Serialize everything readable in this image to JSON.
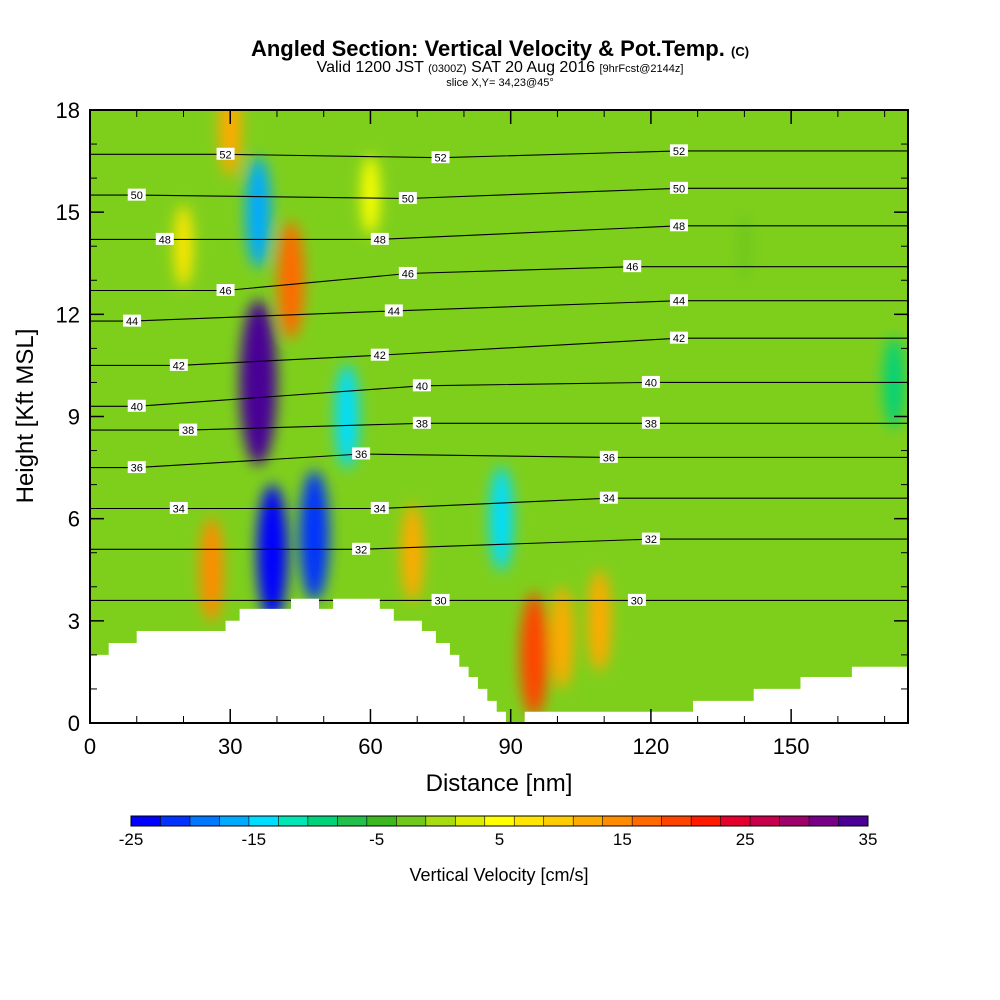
{
  "chart_data": {
    "type": "heatmap",
    "title": "Angled Section: Vertical Velocity & Pot.Temp.",
    "title_unit": "(C)",
    "subtitle_prefix": "Valid 1200 JST",
    "subtitle_utc": "(0300Z)",
    "subtitle_date": "SAT 20 Aug 2016",
    "subtitle_fcst": "[9hrFcst@2144z]",
    "slice_label": "slice X,Y= 34,23@45°",
    "xlabel": "Distance [nm]",
    "ylabel": "Height [Kft MSL]",
    "xlim": [
      0,
      175
    ],
    "ylim": [
      0,
      18
    ],
    "x_ticks": [
      0,
      30,
      60,
      90,
      120,
      150
    ],
    "y_ticks": [
      0,
      3,
      6,
      9,
      12,
      15,
      18
    ],
    "colorbar": {
      "label": "Vertical Velocity [cm/s]",
      "ticks": [
        -25,
        -15,
        -5,
        5,
        15,
        25,
        35
      ],
      "min": -25,
      "max": 35,
      "colors": [
        "#0000ff",
        "#0033ff",
        "#0077ff",
        "#00aaff",
        "#00ddff",
        "#00e6b4",
        "#00d27a",
        "#22c04a",
        "#3cb81e",
        "#70c81a",
        "#a8dc10",
        "#dcee00",
        "#ffff00",
        "#ffe600",
        "#ffcc00",
        "#ffaa00",
        "#ff8c00",
        "#ff6a00",
        "#ff4400",
        "#ff1a00",
        "#e6002e",
        "#c8004c",
        "#a0006a",
        "#780088",
        "#4a0096"
      ]
    },
    "series": [
      {
        "name": "Vertical Velocity",
        "units": "cm/s",
        "features": [
          {
            "x": 26,
            "z": 4.5,
            "value": 14
          },
          {
            "x": 36,
            "z": 10,
            "value": 33
          },
          {
            "x": 43,
            "z": 13,
            "value": 18
          },
          {
            "x": 39,
            "z": 5,
            "value": -24
          },
          {
            "x": 48,
            "z": 5.5,
            "value": -22
          },
          {
            "x": 55,
            "z": 9,
            "value": -14
          },
          {
            "x": 36,
            "z": 15,
            "value": -16
          },
          {
            "x": 30,
            "z": 17.5,
            "value": 12
          },
          {
            "x": 69,
            "z": 5,
            "value": 12
          },
          {
            "x": 88,
            "z": 6,
            "value": -14
          },
          {
            "x": 95,
            "z": 2,
            "value": 20
          },
          {
            "x": 101,
            "z": 2.5,
            "value": 13
          },
          {
            "x": 109,
            "z": 3,
            "value": 13
          },
          {
            "x": 20,
            "z": 14,
            "value": 7
          },
          {
            "x": 60,
            "z": 15.5,
            "value": 6
          },
          {
            "x": 172,
            "z": 10,
            "value": -10
          },
          {
            "x": 140,
            "z": 14,
            "value": -3
          }
        ]
      },
      {
        "name": "Pot.Temp.",
        "units": "C",
        "isotherms": [
          30,
          32,
          34,
          36,
          38,
          40,
          42,
          44,
          46,
          48,
          50,
          52
        ],
        "labels": [
          {
            "value": 52,
            "x": 29,
            "z": 16.7
          },
          {
            "value": 52,
            "x": 75,
            "z": 16.6
          },
          {
            "value": 52,
            "x": 126,
            "z": 16.8
          },
          {
            "value": 50,
            "x": 10,
            "z": 15.5
          },
          {
            "value": 50,
            "x": 68,
            "z": 15.4
          },
          {
            "value": 50,
            "x": 126,
            "z": 15.7
          },
          {
            "value": 48,
            "x": 16,
            "z": 14.2
          },
          {
            "value": 48,
            "x": 62,
            "z": 14.2
          },
          {
            "value": 48,
            "x": 126,
            "z": 14.6
          },
          {
            "value": 46,
            "x": 29,
            "z": 12.7
          },
          {
            "value": 46,
            "x": 68,
            "z": 13.2
          },
          {
            "value": 46,
            "x": 116,
            "z": 13.4
          },
          {
            "value": 44,
            "x": 9,
            "z": 11.8
          },
          {
            "value": 44,
            "x": 65,
            "z": 12.1
          },
          {
            "value": 44,
            "x": 126,
            "z": 12.4
          },
          {
            "value": 42,
            "x": 19,
            "z": 10.5
          },
          {
            "value": 42,
            "x": 62,
            "z": 10.8
          },
          {
            "value": 42,
            "x": 126,
            "z": 11.3
          },
          {
            "value": 40,
            "x": 10,
            "z": 9.3
          },
          {
            "value": 40,
            "x": 71,
            "z": 9.9
          },
          {
            "value": 40,
            "x": 120,
            "z": 10.0
          },
          {
            "value": 38,
            "x": 21,
            "z": 8.6
          },
          {
            "value": 38,
            "x": 71,
            "z": 8.8
          },
          {
            "value": 38,
            "x": 120,
            "z": 8.8
          },
          {
            "value": 36,
            "x": 10,
            "z": 7.5
          },
          {
            "value": 36,
            "x": 58,
            "z": 7.9
          },
          {
            "value": 36,
            "x": 111,
            "z": 7.8
          },
          {
            "value": 34,
            "x": 19,
            "z": 6.3
          },
          {
            "value": 34,
            "x": 62,
            "z": 6.3
          },
          {
            "value": 34,
            "x": 111,
            "z": 6.6
          },
          {
            "value": 32,
            "x": 58,
            "z": 5.1
          },
          {
            "value": 32,
            "x": 120,
            "z": 5.4
          },
          {
            "value": 30,
            "x": 75,
            "z": 3.6
          },
          {
            "value": 30,
            "x": 117,
            "z": 3.6
          }
        ]
      }
    ],
    "terrain": [
      [
        0,
        2
      ],
      [
        4,
        2
      ],
      [
        4,
        2.35
      ],
      [
        10,
        2.35
      ],
      [
        10,
        2.7
      ],
      [
        29,
        2.7
      ],
      [
        29,
        3.0
      ],
      [
        32,
        3.0
      ],
      [
        32,
        3.35
      ],
      [
        43,
        3.35
      ],
      [
        43,
        3.65
      ],
      [
        49,
        3.65
      ],
      [
        49,
        3.35
      ],
      [
        52,
        3.35
      ],
      [
        52,
        3.65
      ],
      [
        62,
        3.65
      ],
      [
        62,
        3.35
      ],
      [
        65,
        3.35
      ],
      [
        65,
        3.0
      ],
      [
        71,
        3.0
      ],
      [
        71,
        2.7
      ],
      [
        74,
        2.7
      ],
      [
        74,
        2.35
      ],
      [
        77,
        2.35
      ],
      [
        77,
        2.0
      ],
      [
        79,
        2.0
      ],
      [
        79,
        1.65
      ],
      [
        81,
        1.65
      ],
      [
        81,
        1.35
      ],
      [
        83,
        1.35
      ],
      [
        83,
        1.0
      ],
      [
        85,
        1.0
      ],
      [
        85,
        0.65
      ],
      [
        87,
        0.65
      ],
      [
        87,
        0.33
      ],
      [
        89,
        0.33
      ],
      [
        89,
        0.0
      ],
      [
        93,
        0.0
      ],
      [
        93,
        0.33
      ],
      [
        129,
        0.33
      ],
      [
        129,
        0.65
      ],
      [
        142,
        0.65
      ],
      [
        142,
        1.0
      ],
      [
        152,
        1.0
      ],
      [
        152,
        1.35
      ],
      [
        163,
        1.35
      ],
      [
        163,
        1.65
      ],
      [
        175,
        1.65
      ]
    ]
  }
}
